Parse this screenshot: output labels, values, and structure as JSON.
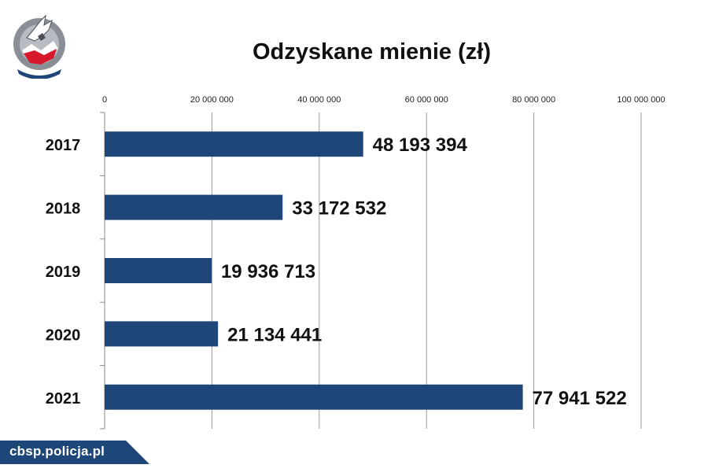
{
  "chart_data": {
    "type": "bar",
    "orientation": "horizontal",
    "title": "Odzyskane mienie (zł)",
    "xlabel": "",
    "ylabel": "",
    "categories": [
      "2017",
      "2018",
      "2019",
      "2020",
      "2021"
    ],
    "values": [
      48193394,
      33172532,
      19936713,
      21134441,
      77941522
    ],
    "value_labels": [
      "48 193 394",
      "33 172 532",
      "19 936 713",
      "21 134 441",
      "77 941 522"
    ],
    "xlim": [
      0,
      100000000
    ],
    "x_ticks": [
      0,
      20000000,
      40000000,
      60000000,
      80000000,
      100000000
    ],
    "x_tick_labels": [
      "0",
      "20 000 000",
      "40 000 000",
      "60 000 000",
      "80 000 000",
      "100 000 000"
    ],
    "x_axis_position": "top",
    "grid": true,
    "legend": "none",
    "bar_color": "#1f4678"
  },
  "footer": {
    "site": "cbsp.policja.pl"
  },
  "colors": {
    "accent": "#1f4678",
    "logo_red": "#d7192b",
    "logo_gray": "#8a8f96"
  }
}
